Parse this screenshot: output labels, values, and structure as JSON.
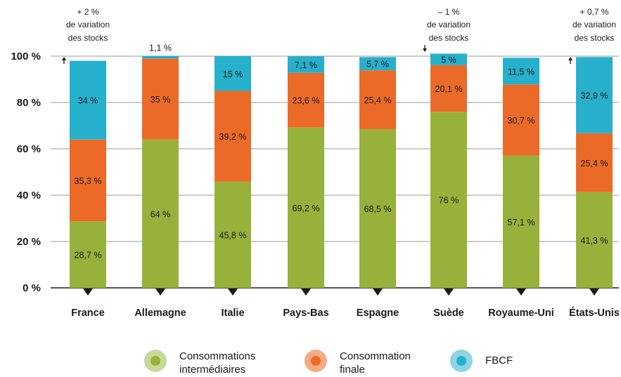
{
  "chart_data": {
    "type": "bar",
    "stacked": true,
    "categories": [
      "France",
      "Allemagne",
      "Italie",
      "Pays-Bas",
      "Espagne",
      "Suède",
      "Royaume-Uni",
      "États-Unis"
    ],
    "series": [
      {
        "name": "Consommations intermédiaires",
        "color": "#97b13a",
        "values": [
          28.7,
          64,
          45.8,
          69.2,
          68.5,
          76,
          57.1,
          41.3
        ],
        "labels": [
          "28,7 %",
          "64 %",
          "45,8 %",
          "69,2 %",
          "68,5 %",
          "76 %",
          "57,1 %",
          "41,3 %"
        ]
      },
      {
        "name": "Consommation finale",
        "color": "#ec6a28",
        "values": [
          35.3,
          35,
          39.2,
          23.6,
          25.4,
          20.1,
          30.7,
          25.4
        ],
        "labels": [
          "35,3 %",
          "35 %",
          "39,2 %",
          "23,6 %",
          "25,4 %",
          "20,1 %",
          "30,7 %",
          "25,4 %"
        ]
      },
      {
        "name": "FBCF",
        "color": "#26b0cc",
        "values": [
          34,
          1.1,
          15,
          7.1,
          5.7,
          5,
          11.5,
          32.9
        ],
        "labels": [
          "34 %",
          "1,1 %",
          "15 %",
          "7,1 %",
          "5,7 %",
          "5 %",
          "11,5 %",
          "32,9 %"
        ]
      }
    ],
    "yticks": [
      "0 %",
      "20 %",
      "40 %",
      "60 %",
      "80 %",
      "100 %"
    ],
    "ylim": [
      0,
      100
    ],
    "grid": true,
    "legend_position": "bottom",
    "annotations": [
      {
        "category": "France",
        "lines": [
          "+ 2 %",
          "de variation",
          "des stocks"
        ],
        "direction": "up"
      },
      {
        "category": "Suède",
        "lines": [
          "– 1 %",
          "de variation",
          "des stocks"
        ],
        "direction": "down"
      },
      {
        "category": "États-Unis",
        "lines": [
          "+ 0,7 %",
          "de variation",
          "des stocks"
        ],
        "direction": "up"
      }
    ]
  },
  "legend": [
    {
      "label": "Consommations\nintermédiaires",
      "outer": "#c9d999",
      "inner": "#97b13a"
    },
    {
      "label": "Consommation\nfinale",
      "outer": "#f5ab84",
      "inner": "#ec6a28"
    },
    {
      "label": "FBCF",
      "outer": "#8ed4e3",
      "inner": "#26b0cc"
    }
  ]
}
